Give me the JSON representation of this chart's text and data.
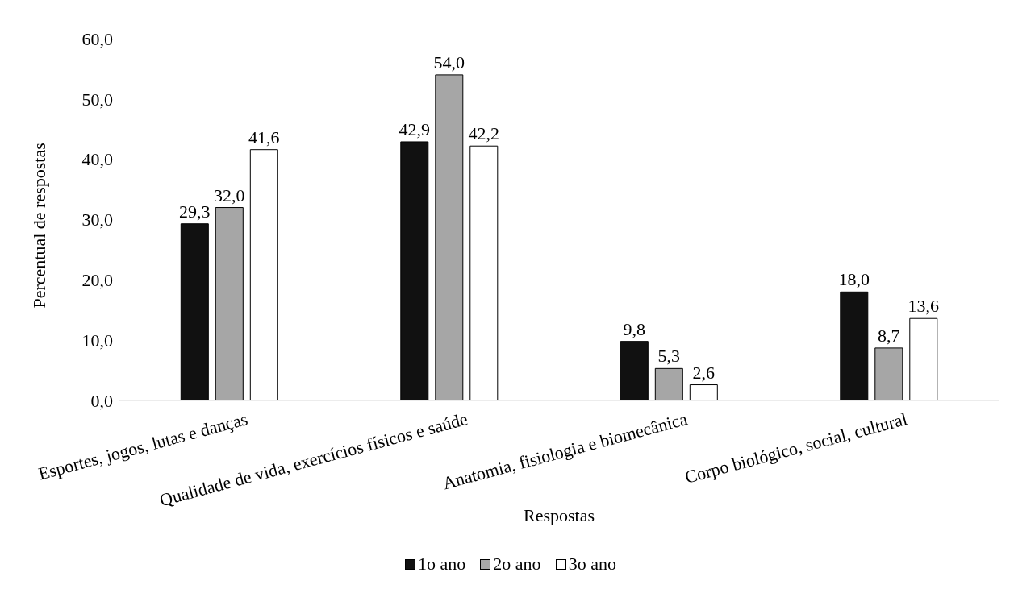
{
  "chart_data": {
    "type": "bar",
    "xlabel": "Respostas",
    "ylabel": "Percentual de respostas",
    "categories": [
      "Esportes, jogos, lutas e danças",
      "Qualidade de vida, exercícios físicos e saúde",
      "Anatomia, fisiologia e biomecânica",
      "Corpo biológico, social, cultural"
    ],
    "series": [
      {
        "name": "1o ano",
        "color": "#111111",
        "values": [
          29.3,
          42.9,
          9.8,
          18.0
        ],
        "value_labels": [
          "29,3",
          "42,9",
          "9,8",
          "18,0"
        ]
      },
      {
        "name": "2o ano",
        "color": "#a6a6a6",
        "values": [
          32.0,
          54.0,
          5.3,
          8.7
        ],
        "value_labels": [
          "32,0",
          "54,0",
          "5,3",
          "8,7"
        ]
      },
      {
        "name": "3o ano",
        "color": "#ffffff",
        "values": [
          41.6,
          42.2,
          2.6,
          13.6
        ],
        "value_labels": [
          "41,6",
          "42,2",
          "2,6",
          "13,6"
        ]
      }
    ],
    "ylim": [
      0,
      60
    ],
    "yticks": [
      {
        "value": 0,
        "label": "0,0"
      },
      {
        "value": 10,
        "label": "10,0"
      },
      {
        "value": 20,
        "label": "20,0"
      },
      {
        "value": 30,
        "label": "30,0"
      },
      {
        "value": 40,
        "label": "40,0"
      },
      {
        "value": 50,
        "label": "50,0"
      },
      {
        "value": 60,
        "label": "60,0"
      }
    ],
    "grid": false,
    "legend": "bottom"
  }
}
